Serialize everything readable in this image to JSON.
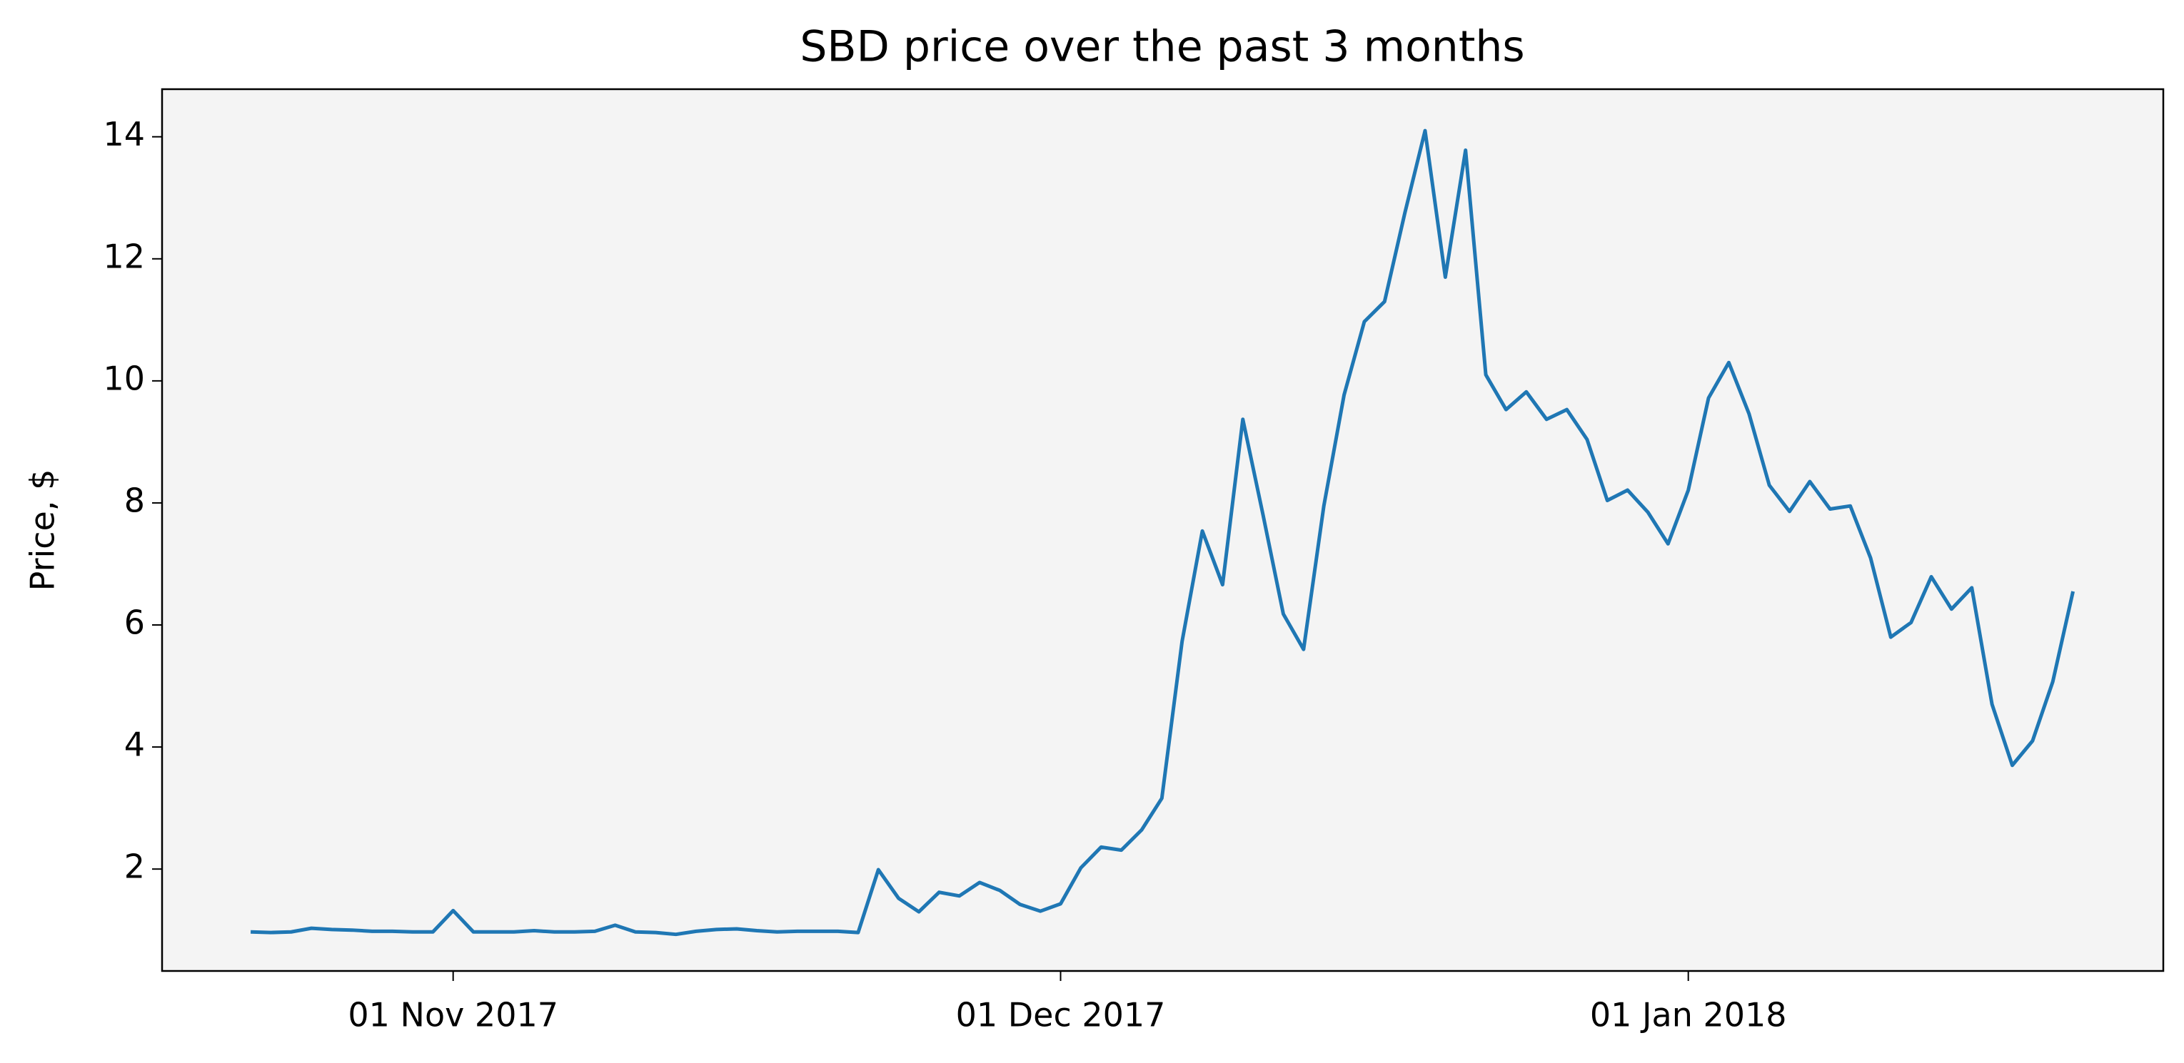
{
  "chart_data": {
    "type": "line",
    "title": "SBD price over the past 3 months",
    "y_label": "Price, $",
    "x": [
      "2017-10-22",
      "2017-10-23",
      "2017-10-24",
      "2017-10-25",
      "2017-10-26",
      "2017-10-27",
      "2017-10-28",
      "2017-10-29",
      "2017-10-30",
      "2017-10-31",
      "2017-11-01",
      "2017-11-02",
      "2017-11-03",
      "2017-11-04",
      "2017-11-05",
      "2017-11-06",
      "2017-11-07",
      "2017-11-08",
      "2017-11-09",
      "2017-11-10",
      "2017-11-11",
      "2017-11-12",
      "2017-11-13",
      "2017-11-14",
      "2017-11-15",
      "2017-11-16",
      "2017-11-17",
      "2017-11-18",
      "2017-11-19",
      "2017-11-20",
      "2017-11-21",
      "2017-11-22",
      "2017-11-23",
      "2017-11-24",
      "2017-11-25",
      "2017-11-26",
      "2017-11-27",
      "2017-11-28",
      "2017-11-29",
      "2017-11-30",
      "2017-12-01",
      "2017-12-02",
      "2017-12-03",
      "2017-12-04",
      "2017-12-05",
      "2017-12-06",
      "2017-12-07",
      "2017-12-08",
      "2017-12-09",
      "2017-12-10",
      "2017-12-11",
      "2017-12-12",
      "2017-12-13",
      "2017-12-14",
      "2017-12-15",
      "2017-12-16",
      "2017-12-17",
      "2017-12-18",
      "2017-12-19",
      "2017-12-20",
      "2017-12-21",
      "2017-12-22",
      "2017-12-23",
      "2017-12-24",
      "2017-12-25",
      "2017-12-26",
      "2017-12-27",
      "2017-12-28",
      "2017-12-29",
      "2017-12-30",
      "2017-12-31",
      "2018-01-01",
      "2018-01-02",
      "2018-01-03",
      "2018-01-04",
      "2018-01-05",
      "2018-01-06",
      "2018-01-07",
      "2018-01-08",
      "2018-01-09",
      "2018-01-10",
      "2018-01-11",
      "2018-01-12",
      "2018-01-13",
      "2018-01-14",
      "2018-01-15",
      "2018-01-16",
      "2018-01-17",
      "2018-01-18",
      "2018-01-19",
      "2018-01-20"
    ],
    "series": [
      {
        "name": "SBD",
        "color": "#1f77b4",
        "values": [
          0.97,
          0.96,
          0.97,
          1.03,
          1.01,
          1.0,
          0.98,
          0.98,
          0.97,
          0.97,
          1.32,
          0.97,
          0.97,
          0.97,
          0.99,
          0.97,
          0.97,
          0.98,
          1.08,
          0.97,
          0.96,
          0.93,
          0.98,
          1.01,
          1.02,
          0.99,
          0.97,
          0.98,
          0.98,
          0.98,
          0.96,
          1.99,
          1.52,
          1.3,
          1.62,
          1.56,
          1.78,
          1.65,
          1.42,
          1.31,
          1.43,
          2.02,
          2.36,
          2.31,
          2.64,
          3.16,
          5.73,
          7.54,
          6.66,
          9.37,
          7.8,
          6.18,
          5.6,
          7.95,
          9.77,
          10.97,
          11.3,
          12.75,
          14.1,
          11.7,
          13.78,
          10.1,
          9.53,
          9.82,
          9.37,
          9.53,
          9.04,
          8.04,
          8.21,
          7.85,
          7.33,
          8.21,
          9.72,
          10.3,
          9.46,
          8.29,
          7.86,
          8.35,
          7.9,
          7.95,
          7.1,
          5.8,
          6.04,
          6.79,
          6.26,
          6.61,
          4.7,
          3.7,
          4.1,
          5.07,
          6.55
        ]
      }
    ],
    "xlim": [
      "2017-10-17T15:00",
      "2018-01-24T11:00"
    ],
    "xticks": [
      {
        "value": "2017-11-01",
        "label": "01 Nov 2017"
      },
      {
        "value": "2017-12-01",
        "label": "01 Dec 2017"
      },
      {
        "value": "2018-01-01",
        "label": "01 Jan 2018"
      }
    ],
    "ylim": [
      0.33,
      14.78
    ],
    "yticks": [
      2,
      4,
      6,
      8,
      10,
      12,
      14
    ],
    "grid": false,
    "background": "#f4f4f4"
  }
}
